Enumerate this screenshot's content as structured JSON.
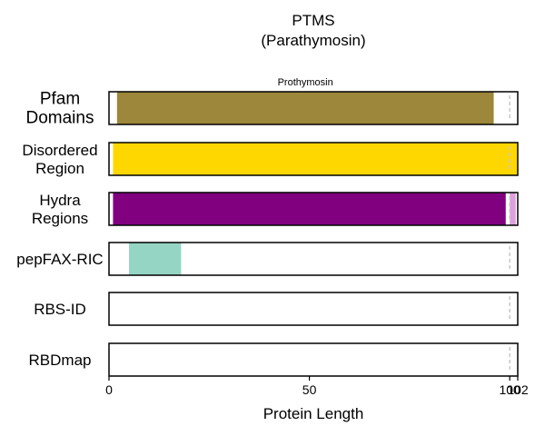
{
  "chart_data": {
    "type": "bar",
    "title_line1": "PTMS",
    "title_line2": "(Parathymosin)",
    "xlabel": "Protein Length",
    "xlim": [
      0,
      102
    ],
    "xticks": [
      {
        "value": 0,
        "label": "0"
      },
      {
        "value": 50,
        "label": "50"
      },
      {
        "value": 100,
        "label": "100"
      },
      {
        "value": 102,
        "label": "102"
      }
    ],
    "reference_line_x": 100,
    "tracks": [
      {
        "id": "pfam",
        "label_lines": [
          "Pfam",
          "Domains"
        ],
        "segments": [
          {
            "start": 2,
            "end": 96,
            "color": "#9c873a",
            "label": "Prothymosin"
          }
        ]
      },
      {
        "id": "disordered",
        "label_lines": [
          "Disordered",
          "Region"
        ],
        "segments": [
          {
            "start": 1,
            "end": 102,
            "color": "#ffd700"
          }
        ]
      },
      {
        "id": "hydra",
        "label_lines": [
          "Hydra",
          "Regions"
        ],
        "segments": [
          {
            "start": 1,
            "end": 99,
            "color": "#800080"
          },
          {
            "start": 100,
            "end": 101.5,
            "color": "#dda0dd"
          }
        ]
      },
      {
        "id": "pepfax",
        "label_lines": [
          "pepFAX-RIC"
        ],
        "segments": [
          {
            "start": 5,
            "end": 18,
            "color": "#95d5c3"
          }
        ]
      },
      {
        "id": "rbsid",
        "label_lines": [
          "RBS-ID"
        ],
        "segments": []
      },
      {
        "id": "rbdmap",
        "label_lines": [
          "RBDmap"
        ],
        "segments": []
      }
    ]
  }
}
